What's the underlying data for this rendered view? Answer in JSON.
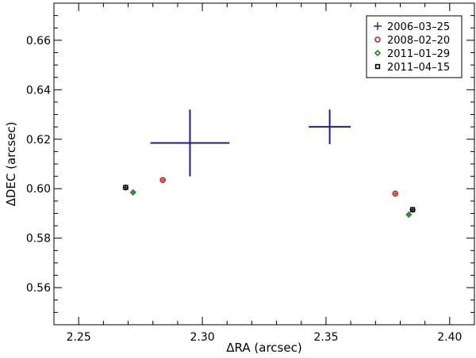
{
  "chart_data": {
    "type": "scatter",
    "xlabel": "ΔRA (arcsec)",
    "ylabel": "ΔDEC (arcsec)",
    "xlim": [
      2.24,
      2.41
    ],
    "ylim": [
      0.545,
      0.675
    ],
    "x_ticks": [
      "2.25",
      "2.30",
      "2.35",
      "2.40"
    ],
    "x_tick_values": [
      2.25,
      2.3,
      2.35,
      2.4
    ],
    "y_ticks": [
      "0.56",
      "0.58",
      "0.60",
      "0.62",
      "0.64",
      "0.66"
    ],
    "y_tick_values": [
      0.56,
      0.58,
      0.6,
      0.62,
      0.64,
      0.66
    ],
    "legend_position": "top-right",
    "grid": false,
    "series": [
      {
        "name": "2006–03–25",
        "marker": "plus",
        "color": "#1a1aa6",
        "points": [
          {
            "x": 2.295,
            "y": 0.6185,
            "xerr": 0.016,
            "yerr": 0.0135
          },
          {
            "x": 2.3515,
            "y": 0.625,
            "xerr": 0.0085,
            "yerr": 0.007
          }
        ]
      },
      {
        "name": "2008–02–20",
        "marker": "circle",
        "color": "#d62020",
        "points": [
          {
            "x": 2.284,
            "y": 0.6035,
            "xerr": 0.0012,
            "yerr": 0.0012
          },
          {
            "x": 2.378,
            "y": 0.598,
            "xerr": 0.0012,
            "yerr": 0.0012
          }
        ]
      },
      {
        "name": "2011–01–29",
        "marker": "diamond",
        "color": "#1c8a1c",
        "points": [
          {
            "x": 2.272,
            "y": 0.5985,
            "xerr": 0.0012,
            "yerr": 0.0012
          },
          {
            "x": 2.3835,
            "y": 0.5895,
            "xerr": 0.0012,
            "yerr": 0.0012
          }
        ]
      },
      {
        "name": "2011–04–15",
        "marker": "square",
        "color": "#000000",
        "points": [
          {
            "x": 2.269,
            "y": 0.6005,
            "xerr": 0.0012,
            "yerr": 0.0012
          },
          {
            "x": 2.385,
            "y": 0.5915,
            "xerr": 0.0012,
            "yerr": 0.0012
          }
        ]
      }
    ]
  }
}
